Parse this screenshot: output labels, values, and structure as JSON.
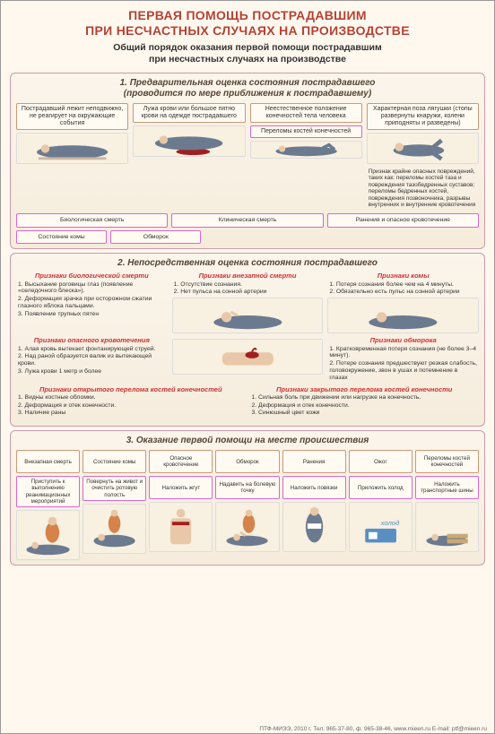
{
  "colors": {
    "bg": "#fff8ee",
    "panel": "#f5ecdc",
    "red": "#b84030",
    "titleShadow": "#ffffff",
    "boxBg": "#fffbf2",
    "boxBorder": "#d6c",
    "illBg": "#f8f0e0",
    "bodyBlue": "#6b7a8f",
    "skinTone": "#e8c8a8",
    "bloodRed": "#a02020",
    "hairDark": "#3a3028"
  },
  "typography": {
    "title_pt": 14,
    "subtitle_pt": 10.5,
    "panel_header_pt": 10,
    "box_pt": 7,
    "signs_pt": 6.8,
    "footer_pt": 6.5
  },
  "title": "ПЕРВАЯ ПОМОЩЬ ПОСТРАДАВШИМ\nПРИ НЕСЧАСТНЫХ СЛУЧАЯХ НА ПРОИЗВОДСТВЕ",
  "subtitle": "Общий порядок оказания первой помощи пострадавшим\nпри несчастных случаях на производстве",
  "sec1": {
    "h": "1. Предварительная оценка состояния пострадавшего\n(проводится по мере приближения к пострадавшему)",
    "top": [
      "Пострадавший лежит неподвижно, не реагирует на окружающие события",
      "Лужа крови или большое пятно крови на одежде пострадавшего",
      "Неестественное положение конечностей тела человека",
      "Характерная поза лягушки (стопы развернуты кнаружи, колени приподняты и разведены)"
    ],
    "mid": [
      "Переломы костей конечностей"
    ],
    "note": "Признак крайне опасных повреждений, таких как: переломы костей таза и повреждения тазобедренных суставов; переломы бедренных костей, повреждения позвоночника, разрывы внутренних и внутренние кровотечения",
    "bot": [
      "Биологическая смерть",
      "Клиническая смерть",
      "Ранения и опасное кровотечение"
    ],
    "bot2": [
      "Состояние комы",
      "Обморок"
    ]
  },
  "sec2": {
    "h": "2. Непосредственная оценка состояния пострадавшего",
    "g1": [
      {
        "h": "Признаки биологической смерти",
        "items": [
          "1. Высыхание роговицы глаз (появление «селедочного блеска»).",
          "2. Деформация зрачка при осторожном сжатии глазного яблока пальцами.",
          "3. Появление трупных пятен"
        ]
      },
      {
        "h": "Признаки внезапной смерти",
        "items": [
          "1. Отсутствие сознания.",
          "2. Нет пульса на сонной артерии"
        ]
      },
      {
        "h": "Признаки комы",
        "items": [
          "1. Потеря сознания более чем на 4 минуты.",
          "2. Обязательно есть пульс на сонной артерии"
        ]
      }
    ],
    "g2": [
      {
        "h": "Признаки опасного кровотечения",
        "items": [
          "1. Алая кровь вытекает фонтанирующей струей.",
          "2. Над раной образуется валик из вытекающей крови.",
          "3. Лужа крови 1 метр и более"
        ]
      },
      {
        "h": "Признаки обморока",
        "items": [
          "1. Кратковременная потеря сознания (не более 3–4 минут).",
          "2. Потере сознания предшествуют резкая слабость, головокружение, звон в ушах и потемнение в глазах"
        ]
      }
    ],
    "g3": [
      {
        "h": "Признаки открытого перелома костей конечностей",
        "items": [
          "1. Видны костные обломки.",
          "2. Деформация и отек конечности.",
          "3. Наличие раны"
        ]
      },
      {
        "h": "Признаки закрытого перелома костей конечности",
        "items": [
          "1. Сильная боль при движении или нагрузке на конечность.",
          "2. Деформация и отек конечности.",
          "3. Синюшный цвет кожи"
        ]
      }
    ]
  },
  "sec3": {
    "h": "3. Оказание первой помощи на месте происшествия",
    "cols": [
      {
        "t": "Внезапная смерть",
        "a": "Приступить к выполнению реанимационных мероприятий"
      },
      {
        "t": "Состояние комы",
        "a": "Повернуть на живот и очистить ротовую полость"
      },
      {
        "t": "Опасное кровотечение",
        "a": "Наложить жгут"
      },
      {
        "t": "Обморок",
        "a": "Надавить на болевую точку"
      },
      {
        "t": "Ранения",
        "a": "Наложить повязки"
      },
      {
        "t": "Ожог",
        "a": "Приложить холод"
      },
      {
        "t": "Переломы костей конечностей",
        "a": "Наложить транспортные шины"
      }
    ]
  },
  "footer": "ПТФ-МИЭЭ, 2010 г.   Тел. 965-37-80, ф. 965-38-46, www.mieen.ru E-mail: ptf@mieen.ru"
}
